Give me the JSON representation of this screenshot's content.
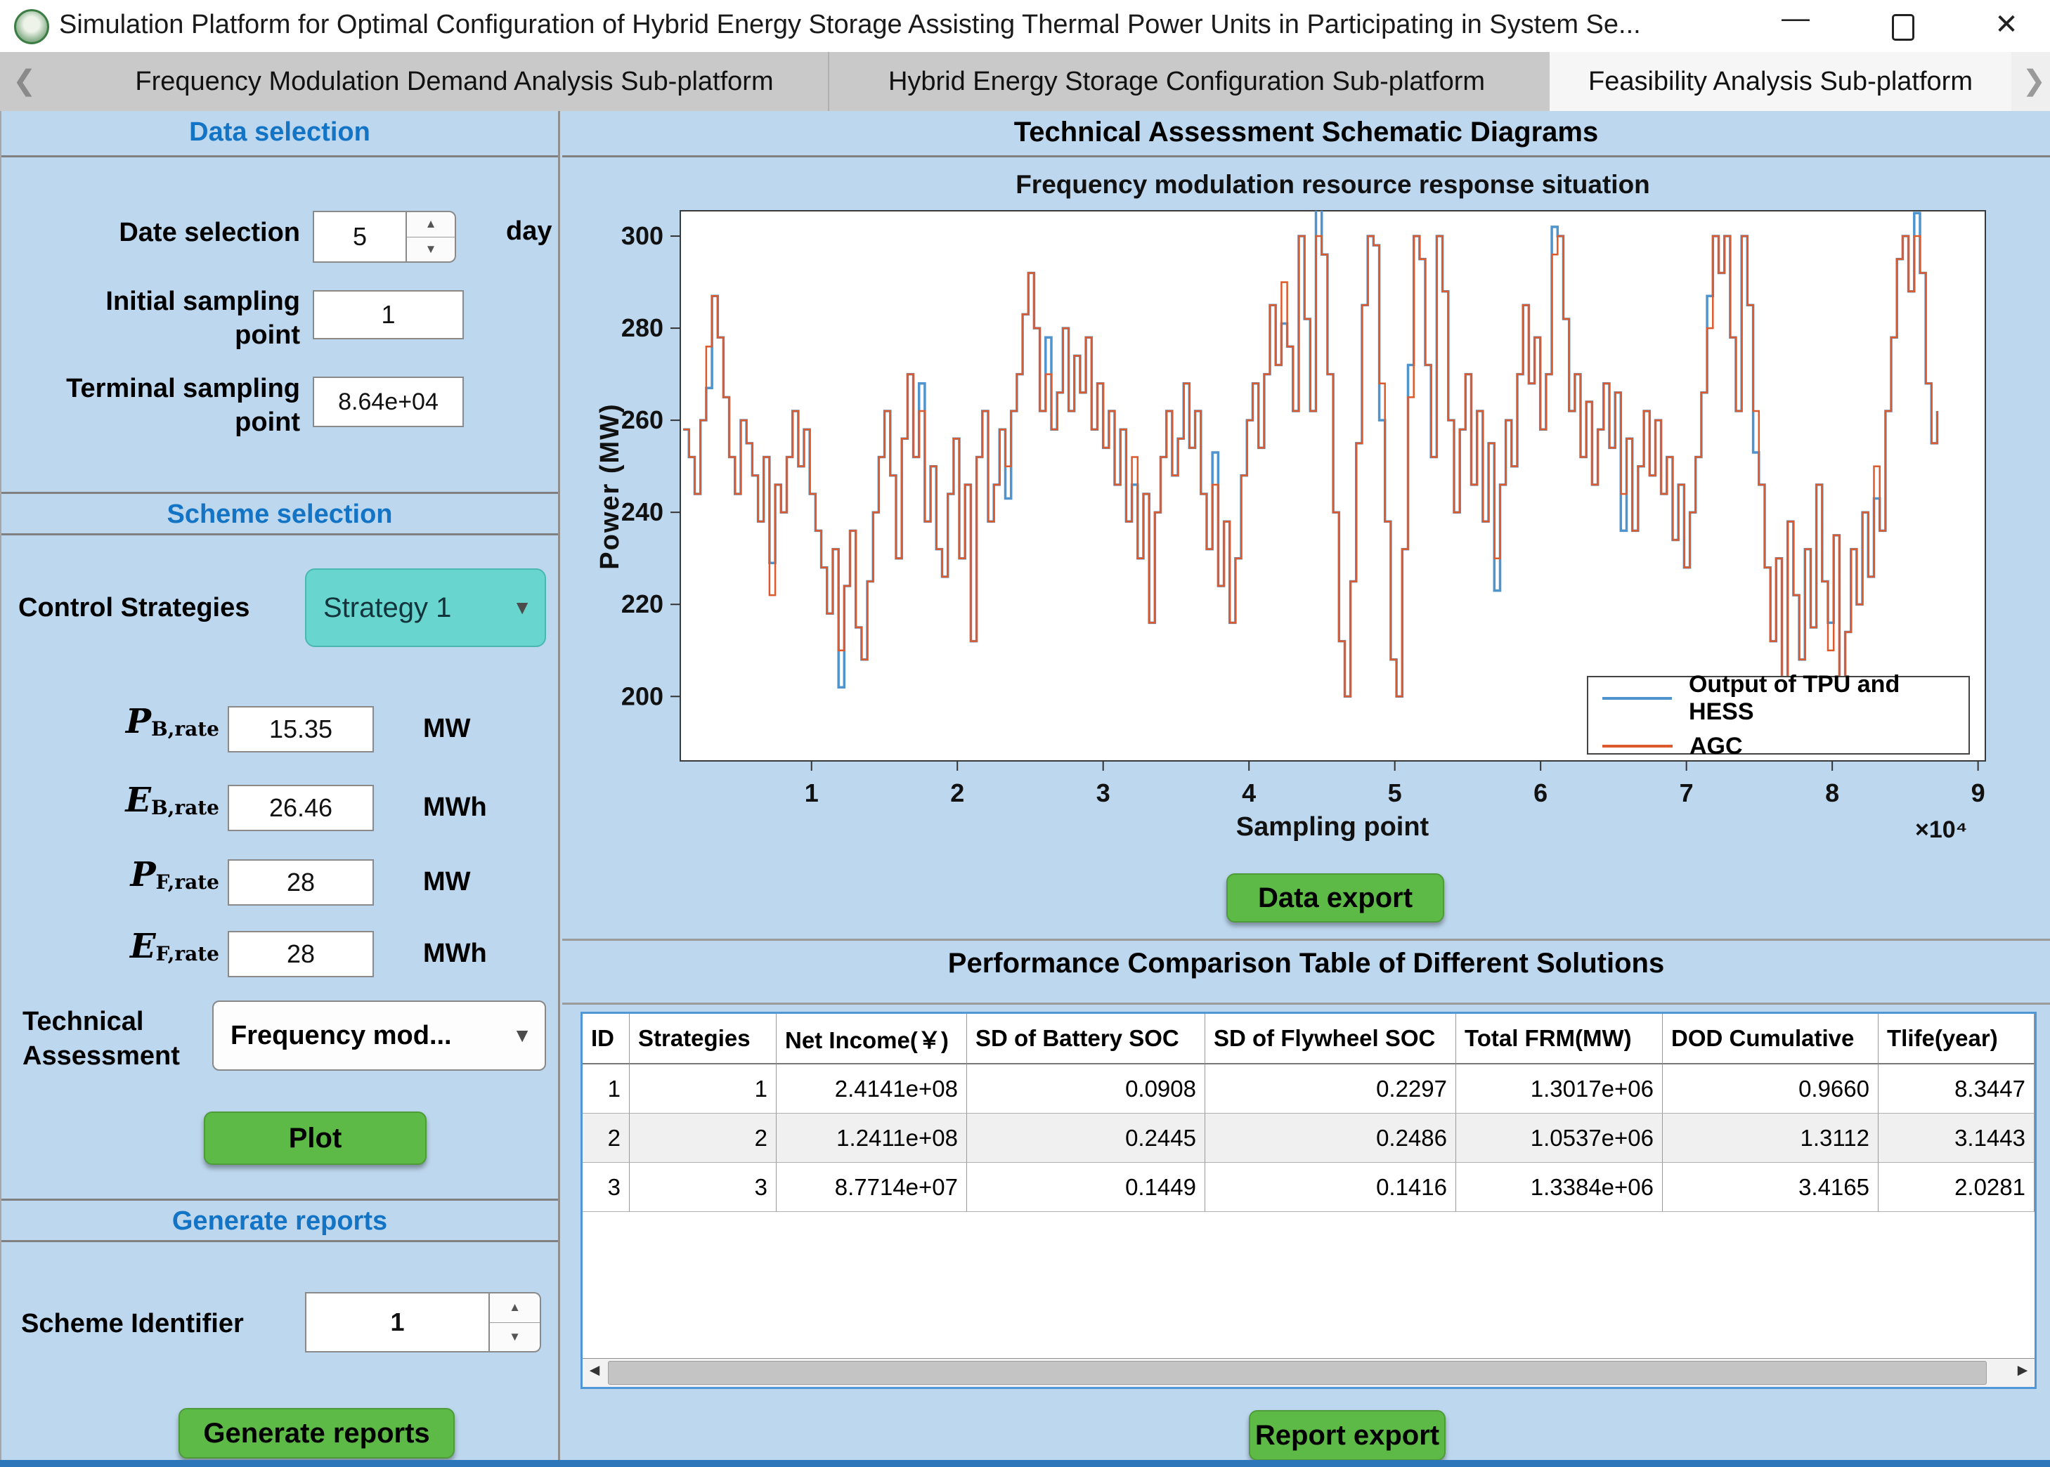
{
  "window": {
    "title": "Simulation Platform for Optimal Configuration of Hybrid Energy Storage Assisting Thermal Power Units in Participating in System Se...",
    "minimize_icon": "—",
    "close_icon": "✕"
  },
  "tabs": {
    "back_icon": "❮",
    "forward_icon": "❯",
    "items": [
      {
        "label": "Frequency Modulation Demand Analysis Sub-platform",
        "active": false
      },
      {
        "label": "Hybrid Energy Storage Configuration Sub-platform",
        "active": false
      },
      {
        "label": "Feasibility Analysis Sub-platform",
        "active": true
      }
    ]
  },
  "sidebar": {
    "data_selection": {
      "title": "Data selection",
      "date_label": "Date selection",
      "date_value": "5",
      "date_unit": "day",
      "initial_label": "Initial sampling\npoint",
      "initial_value": "1",
      "terminal_label": "Terminal sampling\npoint",
      "terminal_value": "8.64e+04"
    },
    "scheme_selection": {
      "title": "Scheme selection",
      "control_label": "Control Strategies",
      "control_value": "Strategy 1",
      "params": [
        {
          "sym": "P",
          "sub": "B,rate",
          "value": "15.35",
          "unit": "MW"
        },
        {
          "sym": "E",
          "sub": "B,rate",
          "value": "26.46",
          "unit": "MWh"
        },
        {
          "sym": "P",
          "sub": "F,rate",
          "value": "28",
          "unit": "MW"
        },
        {
          "sym": "E",
          "sub": "F,rate",
          "value": "28",
          "unit": "MWh"
        }
      ],
      "technical_label": "Technical\nAssessment",
      "technical_value": "Frequency mod...",
      "plot_button": "Plot"
    },
    "generate_reports": {
      "title": "Generate reports",
      "scheme_label": "Scheme Identifier",
      "scheme_value": "1",
      "button": "Generate reports"
    }
  },
  "main": {
    "header": "Technical Assessment Schematic Diagrams",
    "data_export_button": "Data export",
    "table_header": "Performance Comparison Table of Different Solutions",
    "report_export_button": "Report export",
    "table": {
      "columns": [
        "ID",
        "Strategies",
        "Net Income(￥)",
        "SD of Battery SOC",
        "SD of Flywheel SOC",
        "Total FRM(MW)",
        "DOD Cumulative",
        "Tlife(year)"
      ],
      "rows": [
        [
          "1",
          "1",
          "2.4141e+08",
          "0.0908",
          "0.2297",
          "1.3017e+06",
          "0.9660",
          "8.3447"
        ],
        [
          "2",
          "2",
          "1.2411e+08",
          "0.2445",
          "0.2486",
          "1.0537e+06",
          "1.3112",
          "3.1443"
        ],
        [
          "3",
          "3",
          "8.7714e+07",
          "0.1449",
          "0.1416",
          "1.3384e+06",
          "3.4165",
          "2.0281"
        ]
      ]
    }
  },
  "chart_data": {
    "type": "line",
    "title": "Frequency modulation resource response situation",
    "xlabel": "Sampling point",
    "ylabel": "Power (MW)",
    "x_multiplier": "×10⁴",
    "xlim": [
      0.1,
      9.05
    ],
    "ylim": [
      186,
      305.5
    ],
    "xticks": [
      1,
      2,
      3,
      4,
      5,
      6,
      7,
      8,
      9
    ],
    "yticks": [
      200,
      220,
      240,
      260,
      280,
      300
    ],
    "x_start": 0.12,
    "x_end": 8.72,
    "grid": false,
    "legend_position": "bottom-right",
    "series": [
      {
        "name": "Output of TPU and HESS",
        "color": "#4f94cd"
      },
      {
        "name": "AGC",
        "color": "#dd5a2d"
      }
    ],
    "agc_values": [
      258,
      252,
      244,
      260,
      276,
      287,
      278,
      265,
      252,
      244,
      260,
      255,
      248,
      238,
      252,
      222,
      246,
      240,
      252,
      262,
      250,
      258,
      244,
      236,
      228,
      218,
      232,
      210,
      224,
      236,
      215,
      208,
      225,
      240,
      252,
      262,
      248,
      230,
      256,
      270,
      252,
      262,
      238,
      250,
      232,
      226,
      244,
      256,
      230,
      246,
      212,
      252,
      262,
      238,
      246,
      258,
      250,
      262,
      270,
      283,
      292,
      280,
      262,
      270,
      258,
      266,
      280,
      262,
      274,
      266,
      278,
      258,
      268,
      254,
      262,
      246,
      258,
      238,
      252,
      230,
      244,
      216,
      240,
      252,
      262,
      248,
      256,
      268,
      254,
      262,
      244,
      232,
      246,
      224,
      238,
      216,
      230,
      248,
      260,
      268,
      254,
      270,
      285,
      272,
      290,
      276,
      262,
      300,
      282,
      262,
      300,
      296,
      270,
      240,
      212,
      200,
      225,
      255,
      285,
      300,
      298,
      268,
      238,
      208,
      200,
      232,
      265,
      300,
      295,
      272,
      252,
      300,
      288,
      260,
      240,
      258,
      270,
      246,
      262,
      238,
      255,
      230,
      246,
      260,
      250,
      270,
      285,
      268,
      278,
      258,
      270,
      296,
      300,
      282,
      262,
      270,
      252,
      264,
      246,
      258,
      268,
      254,
      266,
      244,
      256,
      236,
      250,
      262,
      248,
      260,
      244,
      252,
      234,
      246,
      228,
      240,
      252,
      266,
      280,
      300,
      292,
      300,
      278,
      262,
      300,
      285,
      262,
      246,
      228,
      212,
      230,
      204,
      238,
      222,
      208,
      232,
      215,
      246,
      225,
      210,
      235,
      200,
      214,
      232,
      220,
      240,
      226,
      250,
      236,
      262,
      278,
      295,
      300,
      288,
      300,
      292,
      268,
      255,
      262
    ],
    "tpu_deviations": [
      [
        4,
        -9
      ],
      [
        15,
        7
      ],
      [
        27,
        -8
      ],
      [
        41,
        6
      ],
      [
        56,
        -7
      ],
      [
        63,
        8
      ],
      [
        78,
        -6
      ],
      [
        92,
        7
      ],
      [
        104,
        -9
      ],
      [
        110,
        6
      ],
      [
        121,
        -8
      ],
      [
        126,
        7
      ],
      [
        141,
        -7
      ],
      [
        151,
        6
      ],
      [
        163,
        -8
      ],
      [
        178,
        7
      ],
      [
        186,
        -9
      ],
      [
        199,
        6
      ],
      [
        207,
        -7
      ],
      [
        214,
        5
      ]
    ]
  }
}
